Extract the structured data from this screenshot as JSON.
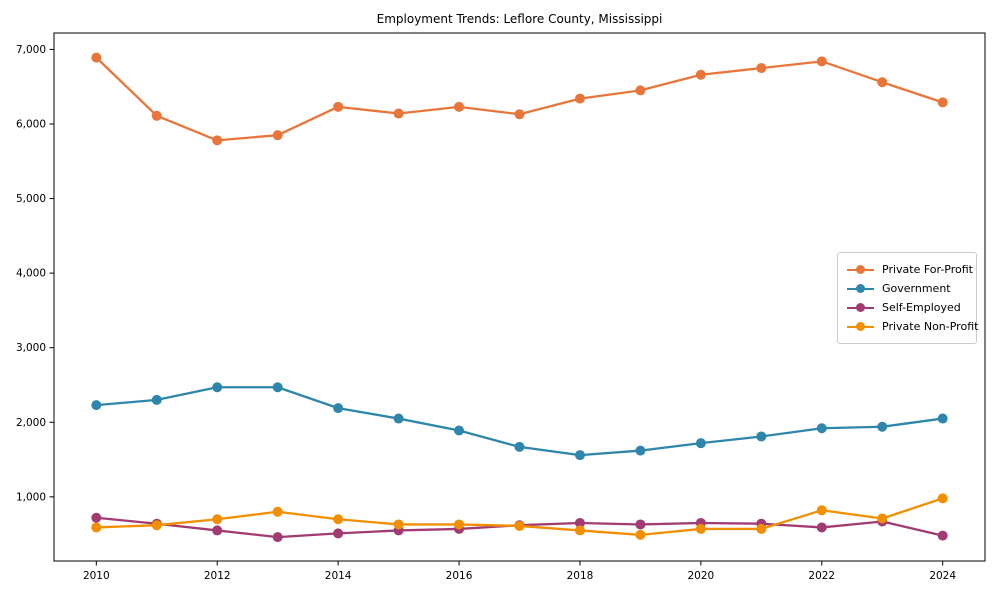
{
  "title": "Employment Trends: Leflore County, Mississippi",
  "chart_data": {
    "type": "line",
    "title": "Employment Trends: Leflore County, Mississippi",
    "xlabel": "",
    "ylabel": "",
    "x": [
      2010,
      2011,
      2012,
      2013,
      2014,
      2015,
      2016,
      2017,
      2018,
      2019,
      2020,
      2021,
      2022,
      2023,
      2024
    ],
    "series": [
      {
        "name": "Private For-Profit",
        "color": "#E8763B",
        "values": [
          6890,
          6110,
          5780,
          5850,
          6230,
          6140,
          6230,
          6130,
          6340,
          6450,
          6660,
          6750,
          6840,
          6560,
          6290
        ]
      },
      {
        "name": "Government",
        "color": "#2E86AB",
        "values": [
          2230,
          2300,
          2470,
          2470,
          2190,
          2050,
          1890,
          1670,
          1560,
          1620,
          1720,
          1810,
          1920,
          1940,
          2050
        ]
      },
      {
        "name": "Self-Employed",
        "color": "#A23B72",
        "values": [
          720,
          640,
          550,
          460,
          510,
          550,
          570,
          620,
          650,
          630,
          650,
          640,
          590,
          670,
          480
        ]
      },
      {
        "name": "Private Non-Profit",
        "color": "#F18F01",
        "values": [
          590,
          620,
          700,
          800,
          700,
          630,
          630,
          610,
          550,
          490,
          570,
          570,
          820,
          710,
          980
        ]
      }
    ],
    "xlim": [
      2009.3,
      2024.7
    ],
    "ylim": [
      140,
      7220
    ],
    "x_tick_values": [
      2010,
      2012,
      2014,
      2016,
      2018,
      2020,
      2022,
      2024
    ],
    "x_tick_labels": [
      "2010",
      "2012",
      "2014",
      "2016",
      "2018",
      "2020",
      "2022",
      "2024"
    ],
    "y_tick_values": [
      1000,
      2000,
      3000,
      4000,
      5000,
      6000,
      7000
    ],
    "y_tick_labels": [
      "1,000",
      "2,000",
      "3,000",
      "4,000",
      "5,000",
      "6,000",
      "7,000"
    ],
    "grid": false,
    "legend_position": "center right",
    "background": "#ffffff",
    "axis_color": "#000000"
  }
}
